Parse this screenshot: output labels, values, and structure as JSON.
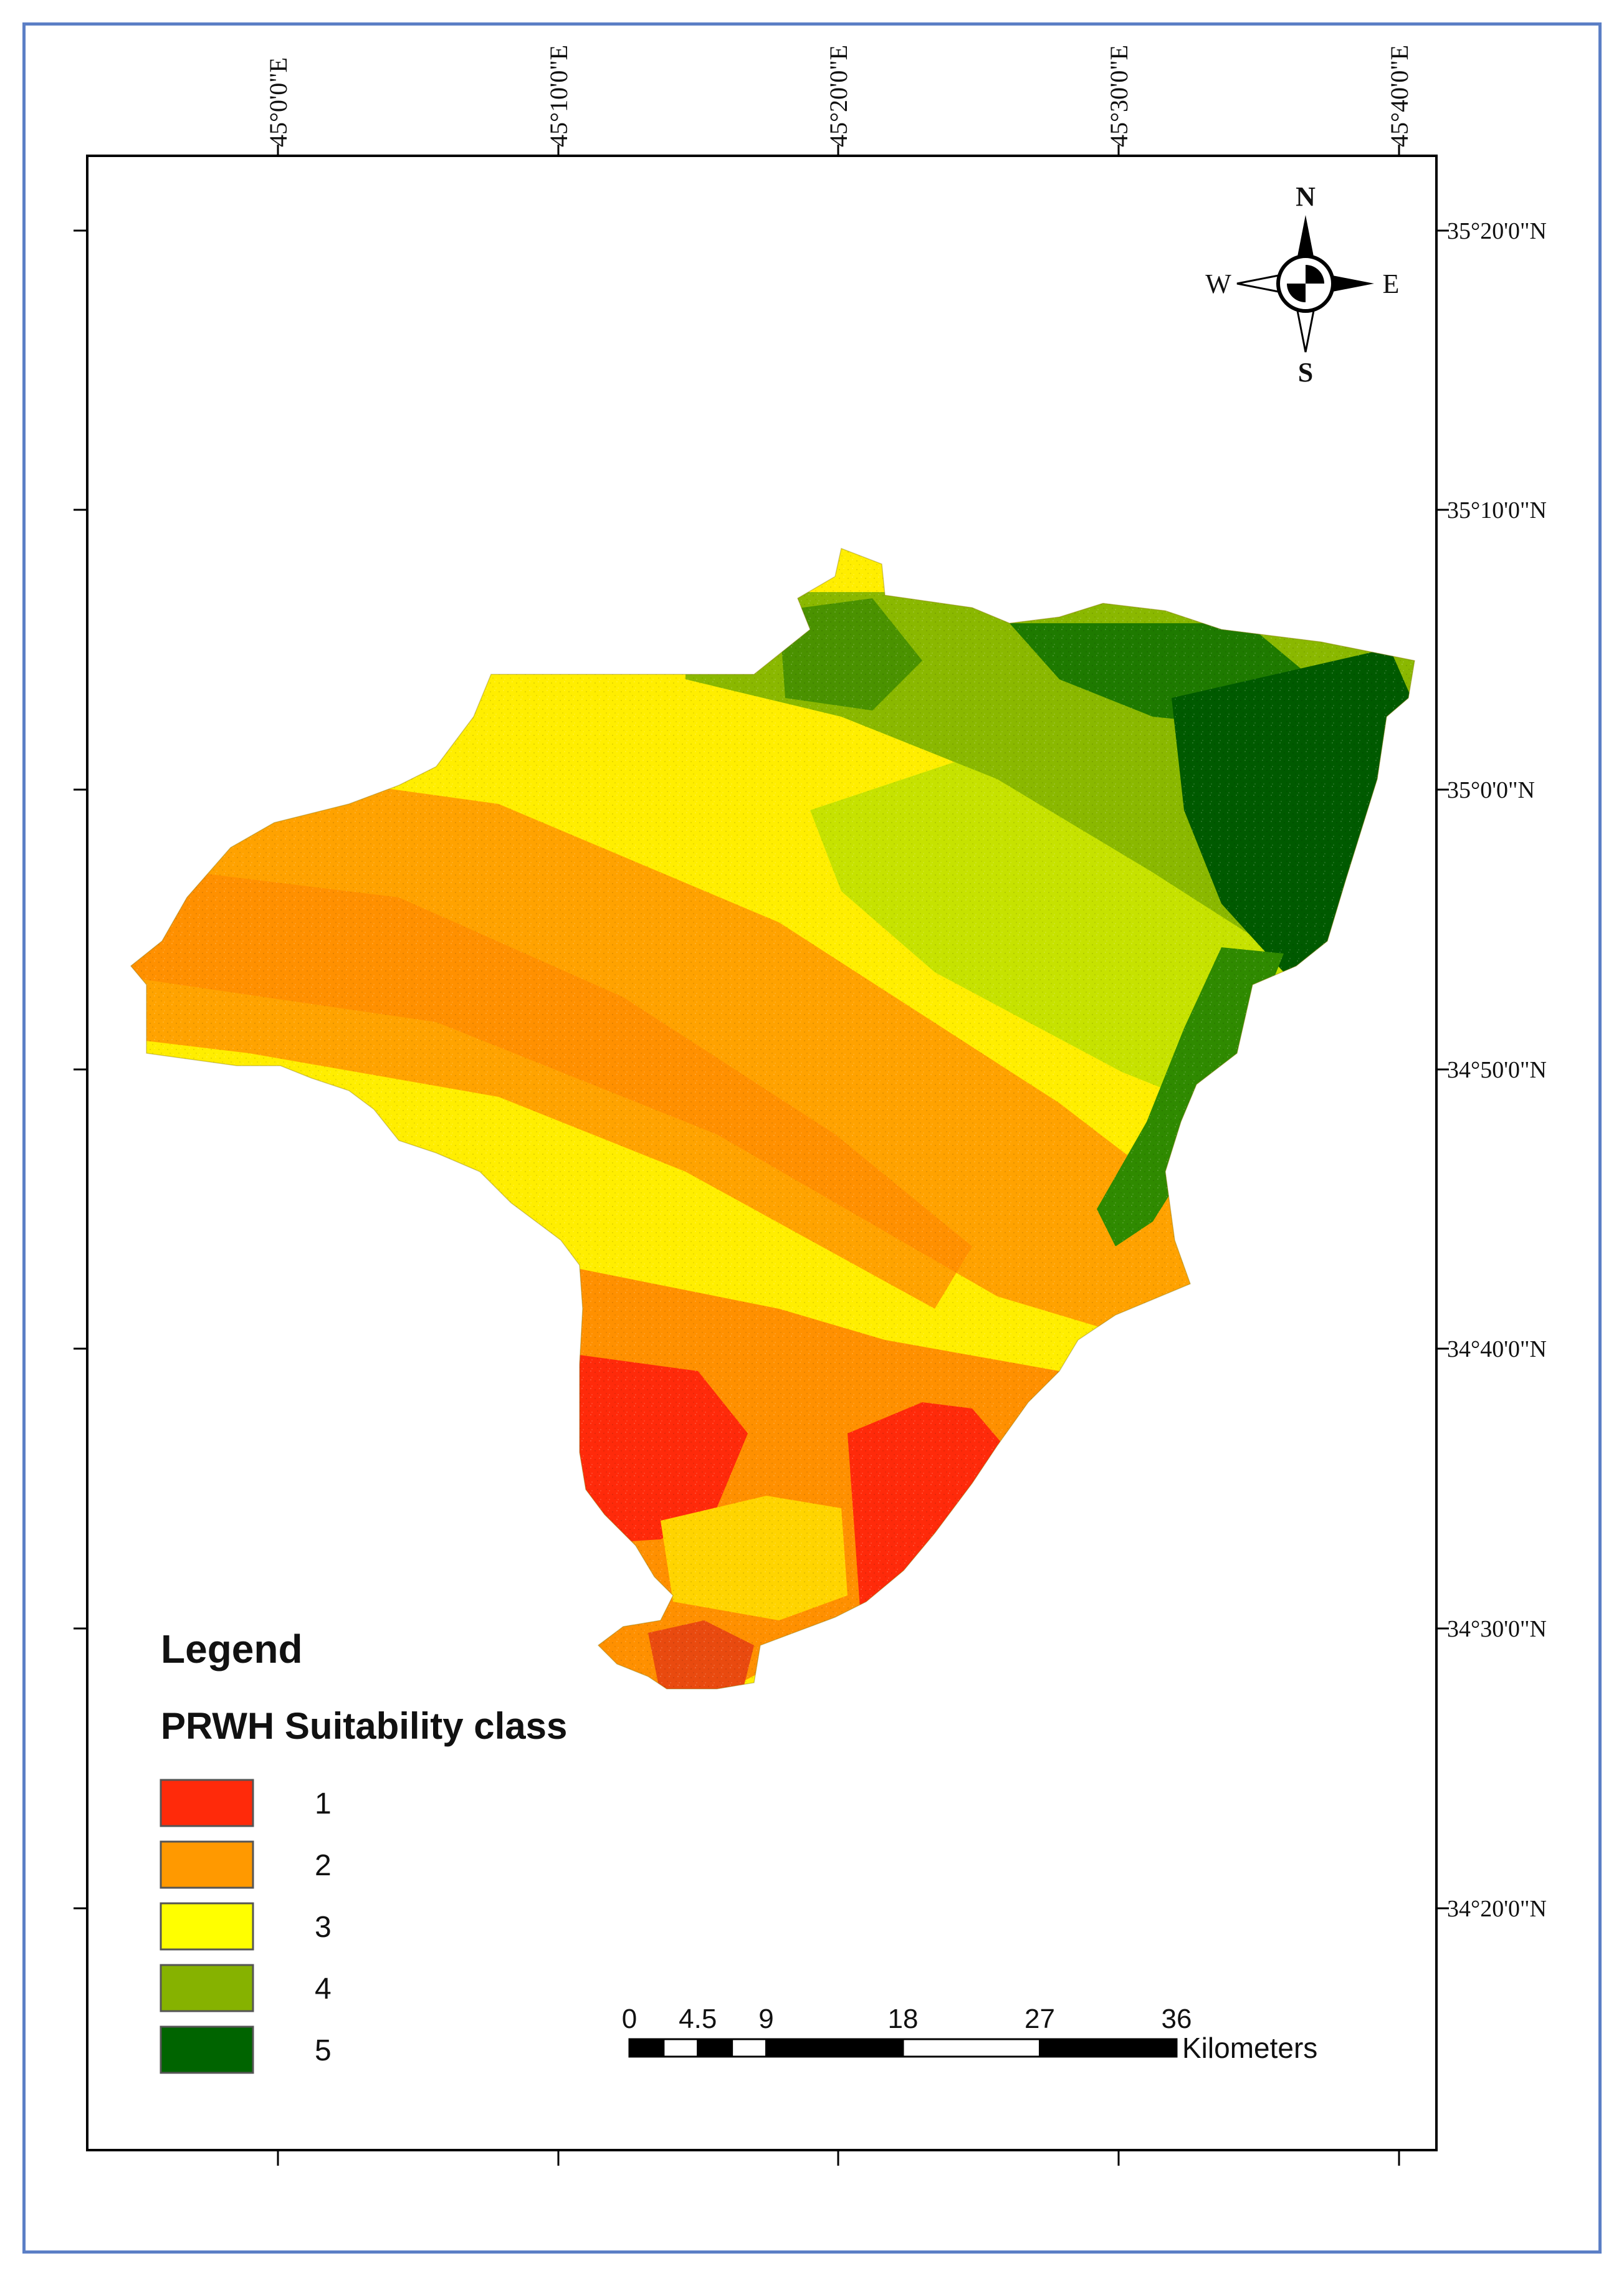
{
  "map": {
    "longitude_labels": [
      "45°0'0\"E",
      "45°10'0\"E",
      "45°20'0\"E",
      "45°30'0\"E",
      "45°40'0\"E"
    ],
    "latitude_labels": [
      "35°20'0\"N",
      "35°10'0\"N",
      "35°0'0\"N",
      "34°50'0\"N",
      "34°40'0\"N",
      "34°30'0\"N",
      "34°20'0\"N"
    ]
  },
  "north_arrow": {
    "n": "N",
    "s": "S",
    "e": "E",
    "w": "W"
  },
  "legend": {
    "title": "Legend",
    "subtitle": "PRWH Suitability class",
    "classes": [
      {
        "label": "1",
        "color": "#ff2a0a"
      },
      {
        "label": "2",
        "color": "#ff9900"
      },
      {
        "label": "3",
        "color": "#ffff00"
      },
      {
        "label": "4",
        "color": "#86b200"
      },
      {
        "label": "5",
        "color": "#006400"
      }
    ]
  },
  "scale_bar": {
    "ticks": [
      "0",
      "4.5",
      "9",
      "18",
      "27",
      "36"
    ],
    "unit": "Kilometers"
  }
}
